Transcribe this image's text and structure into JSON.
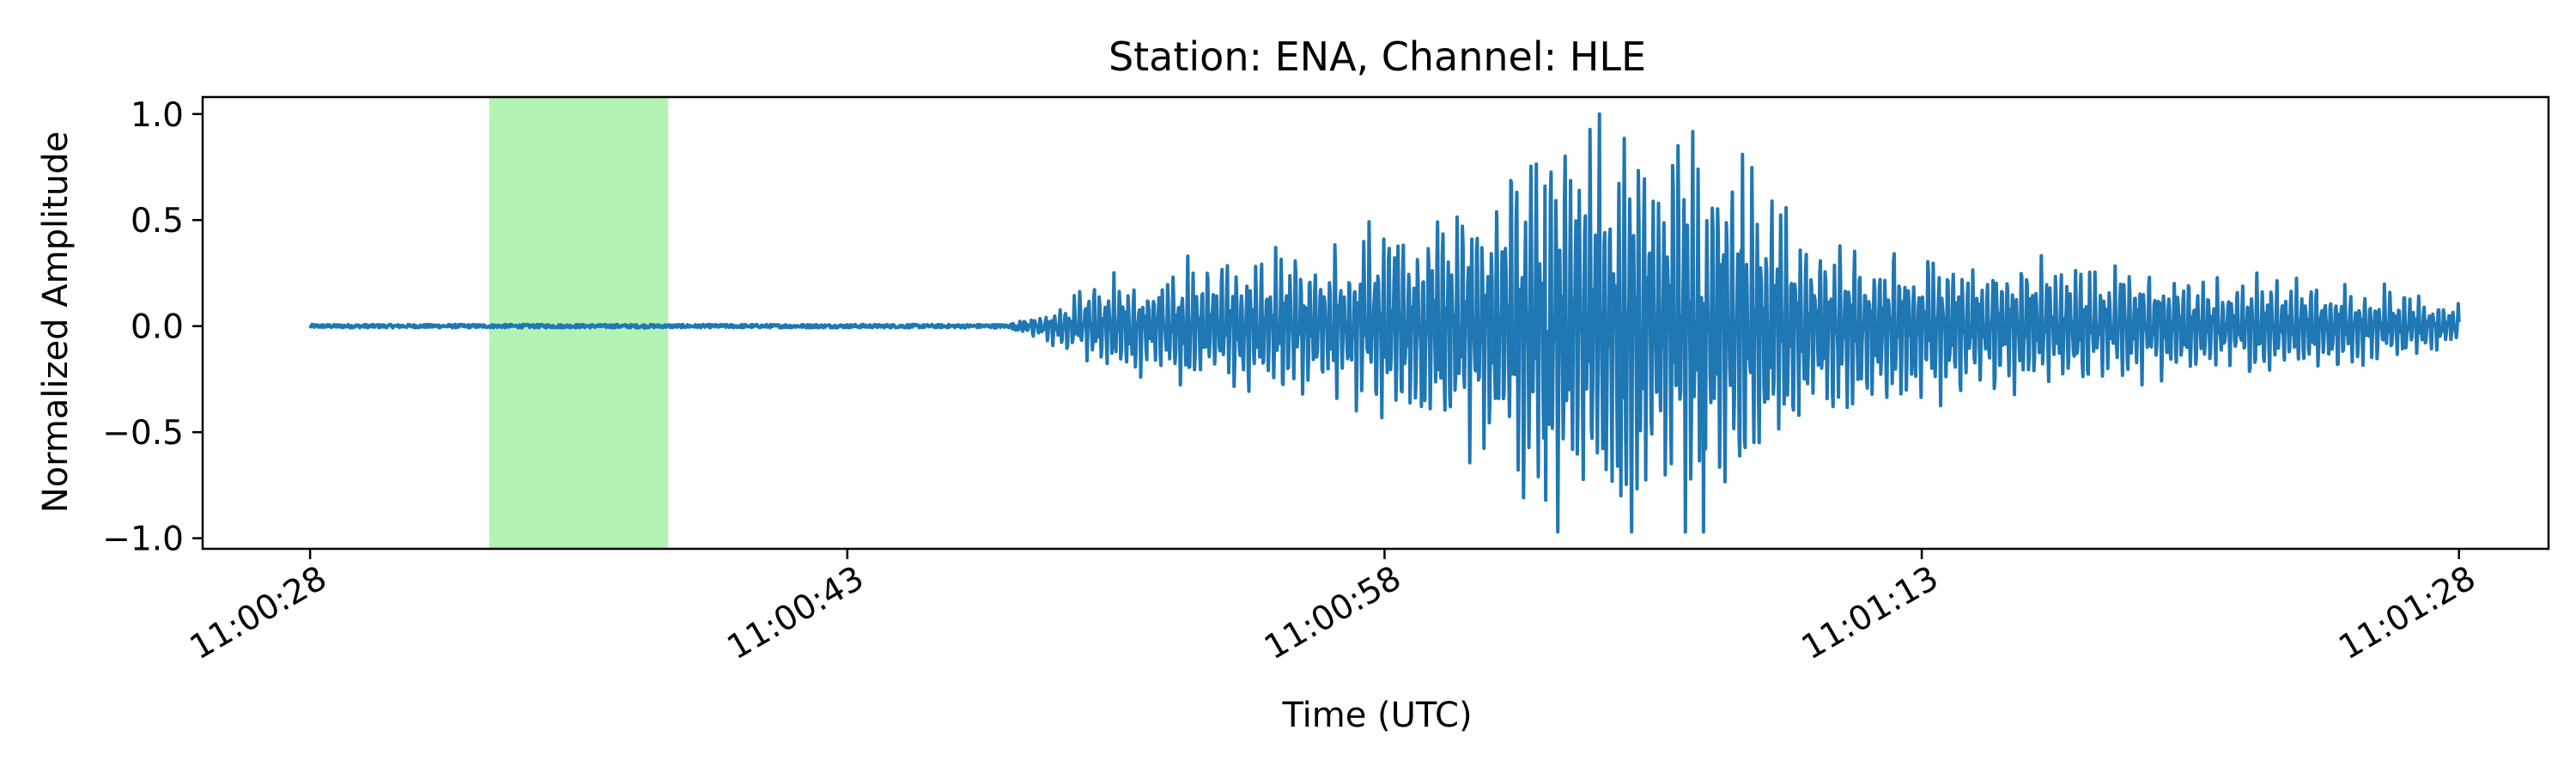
{
  "chart_data": {
    "type": "line",
    "title": "Station: ENA, Channel: HLE",
    "xlabel": "Time (UTC)",
    "ylabel": "Normalized Amplitude",
    "x_tick_labels": [
      "11:00:28",
      "11:00:43",
      "11:00:58",
      "11:01:13",
      "11:01:28"
    ],
    "x_tick_seconds": [
      28,
      43,
      58,
      73,
      88
    ],
    "xlim_seconds": [
      25,
      90.5
    ],
    "y_ticks": [
      1.0,
      0.5,
      0.0,
      -0.5,
      -1.0
    ],
    "y_tick_labels": [
      "1.0",
      "0.5",
      "0.0",
      "−0.5",
      "−1.0"
    ],
    "ylim": [
      -1.05,
      1.08
    ],
    "highlight_span_seconds": [
      33.0,
      38.0
    ],
    "highlight_color": "#b2f2b2",
    "line_color": "#1f77b4",
    "grid": false,
    "series": [
      {
        "x_start_seconds": 28,
        "x_end_seconds": 88,
        "onset_seconds": 48,
        "envelope": [
          [
            28,
            0.008
          ],
          [
            47.5,
            0.008
          ],
          [
            48.5,
            0.06
          ],
          [
            50,
            0.2
          ],
          [
            53,
            0.3
          ],
          [
            56,
            0.33
          ],
          [
            58,
            0.45
          ],
          [
            60,
            0.55
          ],
          [
            62,
            0.8
          ],
          [
            64,
            0.95
          ],
          [
            66,
            0.9
          ],
          [
            68,
            0.7
          ],
          [
            70,
            0.45
          ],
          [
            72,
            0.35
          ],
          [
            75,
            0.3
          ],
          [
            80,
            0.25
          ],
          [
            85,
            0.2
          ],
          [
            88,
            0.1
          ]
        ],
        "peak_values": [
          [
            64.0,
            1.0
          ],
          [
            66.4,
            -0.97
          ],
          [
            66.9,
            -0.97
          ],
          [
            68.0,
            0.81
          ],
          [
            64.6,
            -0.8
          ],
          [
            62.5,
            -0.82
          ]
        ]
      }
    ]
  }
}
